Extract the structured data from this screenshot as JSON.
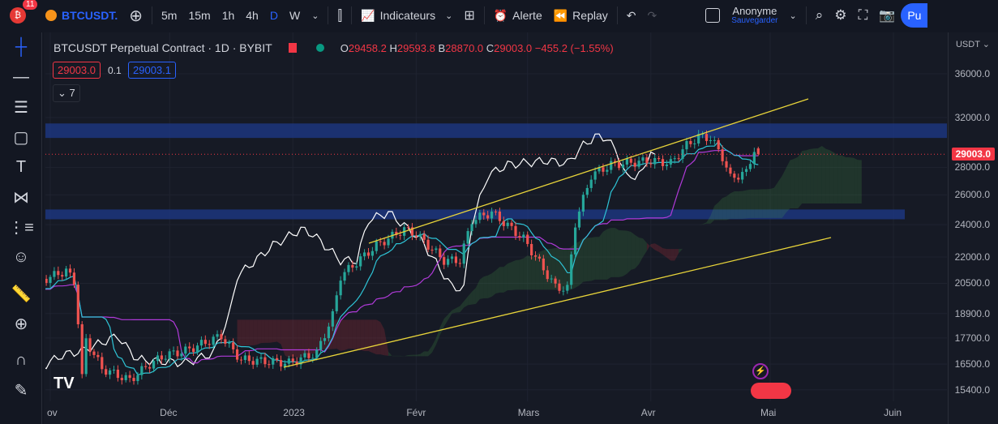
{
  "topbar": {
    "notifications": "11",
    "symbol": "BTCUSDT.",
    "intervals": [
      "5m",
      "15m",
      "1h",
      "4h",
      "D",
      "W"
    ],
    "active_interval": "D",
    "indicators": "Indicateurs",
    "alert": "Alerte",
    "replay": "Replay",
    "user": "Anonyme",
    "save": "Sauvegarder",
    "publish": "Pu"
  },
  "legend": {
    "title": "BTCUSDT Perpetual Contract · 1D · BYBIT",
    "o_label": "O",
    "o": "29458.2",
    "h_label": "H",
    "h": "29593.8",
    "b_label": "B",
    "b": "28870.0",
    "c_label": "C",
    "c": "29003.0",
    "change": "−455.2 (−1.55%)",
    "bid": "29003.0",
    "spread": "0.1",
    "ask": "29003.1",
    "indicators_count": "7"
  },
  "axis": {
    "currency": "USDT",
    "price_labels": [
      "36000.0",
      "32000.0",
      "28000.0",
      "26000.0",
      "24000.0",
      "22000.0",
      "20500.0",
      "18900.0",
      "17700.0",
      "16500.0",
      "15400.0"
    ],
    "last_price": "29003.0",
    "date_labels": [
      "ov",
      "Déc",
      "2023",
      "Févr",
      "Mars",
      "Avr",
      "Mai",
      "Juin"
    ],
    "scale": "log"
  },
  "colors": {
    "up": "#26a69a",
    "down": "#ef5350",
    "tenkan": "#2ec4d6",
    "kijun": "#b03ad9",
    "chikou": "#ffffff",
    "trendline": "#e8d43a",
    "zone": "#1e3a8a"
  },
  "tools": [
    "crosshair-icon",
    "horizontal-line-icon",
    "fib-icon",
    "rectangle-icon",
    "text-icon",
    "pattern-icon",
    "measure-list-icon",
    "emoji-icon",
    "ruler-icon",
    "zoom-in-icon",
    "magnet-icon",
    "lock-pencil-icon"
  ],
  "price_series": [
    [
      -10,
      19500
    ],
    [
      -3,
      20600
    ],
    [
      4,
      21200
    ],
    [
      6,
      20600
    ],
    [
      7,
      18500
    ],
    [
      8,
      15900
    ],
    [
      9,
      17600
    ],
    [
      13,
      16300
    ],
    [
      20,
      15800
    ],
    [
      25,
      16500
    ],
    [
      29,
      16900
    ],
    [
      34,
      17100
    ],
    [
      43,
      17800
    ],
    [
      45,
      17300
    ],
    [
      48,
      16700
    ],
    [
      60,
      16550
    ],
    [
      67,
      17000
    ],
    [
      71,
      18800
    ],
    [
      73,
      20900
    ],
    [
      82,
      22700
    ],
    [
      89,
      23700
    ],
    [
      92,
      23400
    ],
    [
      99,
      21800
    ],
    [
      103,
      21800
    ],
    [
      106,
      24300
    ],
    [
      111,
      24800
    ],
    [
      119,
      23100
    ],
    [
      127,
      20300
    ],
    [
      130,
      20200
    ],
    [
      132,
      24100
    ],
    [
      136,
      27400
    ],
    [
      141,
      28200
    ],
    [
      151,
      28500
    ],
    [
      156,
      28300
    ],
    [
      160,
      29700
    ],
    [
      163,
      30400
    ],
    [
      166,
      30300
    ],
    [
      169,
      28800
    ],
    [
      171,
      27200
    ],
    [
      175,
      27600
    ],
    [
      177,
      29400
    ],
    [
      178,
      29003
    ]
  ]
}
